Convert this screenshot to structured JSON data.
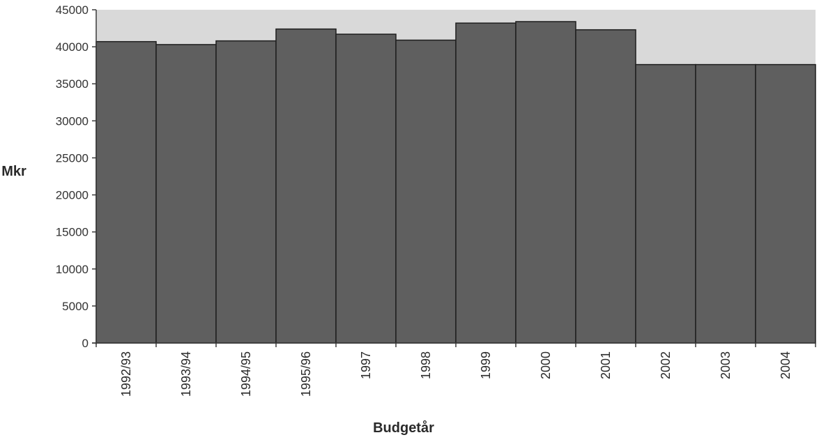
{
  "chart_data": {
    "type": "bar",
    "title": "",
    "xlabel": "Budgetår",
    "ylabel": "Mkr",
    "categories": [
      "1992/93",
      "1993/94",
      "1994/95",
      "1995/96",
      "1997",
      "1998",
      "1999",
      "2000",
      "2001",
      "2002",
      "2003",
      "2004"
    ],
    "values": [
      40700,
      40300,
      40800,
      42400,
      41700,
      40900,
      43200,
      43400,
      42300,
      37600,
      37600,
      37600
    ],
    "ylim": [
      0,
      45000
    ],
    "yticks": [
      0,
      5000,
      10000,
      15000,
      20000,
      25000,
      30000,
      35000,
      40000,
      45000
    ],
    "ytick_labels": [
      "0",
      "5000",
      "10000",
      "15000",
      "20000",
      "25000",
      "30000",
      "35000",
      "40000",
      "45000"
    ],
    "grid": false,
    "legend": "none",
    "colors": {
      "bar": "#5f5f5f",
      "bar_edge": "#1e1e1e",
      "plot_background": "#d9d9d9",
      "axis": "#3a3a3a"
    }
  }
}
